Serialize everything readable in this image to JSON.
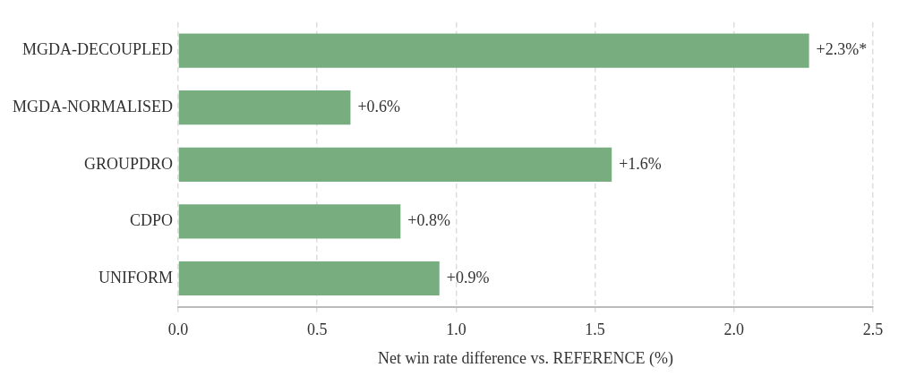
{
  "chart_data": {
    "type": "bar",
    "orientation": "horizontal",
    "xlabel": "Net win rate difference vs. REFERENCE (%)",
    "categories": [
      "MGDA-DECOUPLED",
      "MGDA-NORMALISED",
      "GROUPDRO",
      "CDPO",
      "UNIFORM"
    ],
    "values": [
      2.27,
      0.62,
      1.56,
      0.8,
      0.94
    ],
    "value_labels": [
      "+2.3%*",
      "+0.6%",
      "+1.6%",
      "+0.8%",
      "+0.9%"
    ],
    "color": "#78ad80",
    "xlim": [
      0,
      2.5
    ],
    "xticks": [
      {
        "value": 0,
        "label": "0.0"
      },
      {
        "value": 0.5,
        "label": "0.5"
      },
      {
        "value": 1,
        "label": "1.0"
      },
      {
        "value": 1.5,
        "label": "1.5"
      },
      {
        "value": 2,
        "label": "2.0"
      },
      {
        "value": 2.5,
        "label": "2.5"
      }
    ],
    "grid": "x",
    "legend": false
  }
}
